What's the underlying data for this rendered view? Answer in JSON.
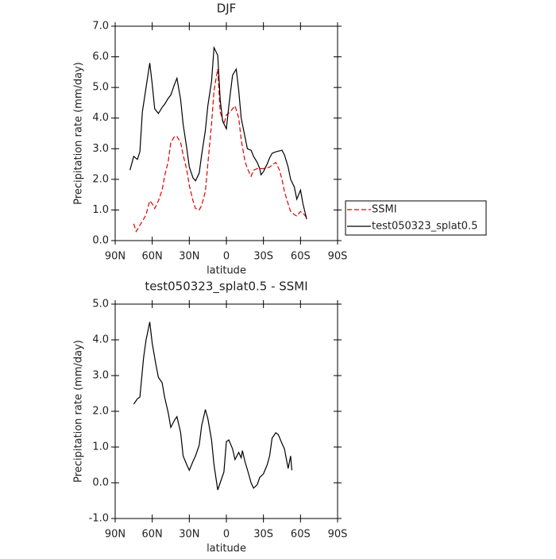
{
  "chart_data": [
    {
      "type": "line",
      "title": "DJF",
      "x_label": "latitude",
      "y_label": "Precipitation rate (mm/day)",
      "xlim": [
        90,
        -90
      ],
      "xticks": [
        {
          "value": 90,
          "label": "90N"
        },
        {
          "value": 60,
          "label": "60N"
        },
        {
          "value": 30,
          "label": "30N"
        },
        0,
        {
          "value": -30,
          "label": "30S"
        },
        {
          "value": -60,
          "label": "60S"
        },
        {
          "value": -90,
          "label": "90S"
        }
      ],
      "ylim": [
        0,
        7
      ],
      "yticks": [
        {
          "value": 0,
          "label": "0.0"
        },
        {
          "value": 1,
          "label": "1.0"
        },
        {
          "value": 2,
          "label": "2.0"
        },
        {
          "value": 3,
          "label": "3.0"
        },
        {
          "value": 4,
          "label": "4.0"
        },
        {
          "value": 5,
          "label": "5.0"
        },
        {
          "value": 6,
          "label": "6.0"
        },
        {
          "value": 7,
          "label": "7.0"
        }
      ],
      "legend": "right",
      "series": [
        {
          "name": "SSMI",
          "color": "#e00000",
          "dashed": true,
          "x": [
            75,
            73,
            70,
            67,
            65,
            62,
            60,
            58,
            55,
            52,
            50,
            47,
            45,
            42,
            40,
            37,
            35,
            32,
            30,
            27,
            25,
            22,
            20,
            17,
            15,
            12,
            10,
            7,
            5,
            2,
            0,
            -3,
            -5,
            -7,
            -10,
            -12,
            -15,
            -17,
            -20,
            -22,
            -25,
            -30,
            -35,
            -38,
            -40,
            -43,
            -45,
            -47,
            -50,
            -52,
            -55,
            -57,
            -60,
            -63,
            -65
          ],
          "values": [
            0.55,
            0.3,
            0.5,
            0.7,
            0.85,
            1.3,
            1.2,
            1.05,
            1.3,
            1.65,
            2.1,
            2.6,
            3.2,
            3.4,
            3.4,
            3.2,
            2.8,
            2.3,
            1.8,
            1.3,
            1.05,
            1.0,
            1.15,
            1.6,
            2.5,
            3.8,
            4.9,
            5.6,
            4.2,
            3.8,
            4.1,
            4.2,
            4.3,
            4.4,
            4.0,
            3.3,
            2.6,
            2.35,
            2.1,
            2.3,
            2.35,
            2.35,
            2.4,
            2.5,
            2.55,
            2.3,
            2.0,
            1.6,
            1.2,
            0.95,
            0.85,
            0.8,
            0.95,
            0.85,
            0.75
          ]
        },
        {
          "name": "test050323_splat0.5",
          "color": "#000000",
          "dashed": false,
          "x": [
            78,
            75,
            72,
            70,
            68,
            65,
            62,
            60,
            58,
            55,
            52,
            50,
            47,
            45,
            42,
            40,
            37,
            35,
            32,
            30,
            27,
            25,
            22,
            20,
            17,
            15,
            12,
            10,
            7,
            5,
            3,
            0,
            -2,
            -5,
            -8,
            -10,
            -12,
            -15,
            -17,
            -20,
            -22,
            -25,
            -27,
            -28,
            -30,
            -33,
            -35,
            -37,
            -40,
            -45,
            -47,
            -50,
            -52,
            -55,
            -57,
            -60,
            -62,
            -65
          ],
          "values": [
            2.3,
            2.75,
            2.65,
            2.9,
            4.2,
            5.0,
            5.8,
            5.1,
            4.3,
            4.15,
            4.35,
            4.45,
            4.65,
            4.75,
            5.1,
            5.3,
            4.6,
            3.8,
            3.0,
            2.4,
            2.05,
            1.95,
            2.2,
            2.8,
            3.6,
            4.4,
            5.2,
            6.3,
            6.05,
            4.6,
            3.9,
            3.65,
            4.4,
            5.4,
            5.6,
            4.9,
            4.0,
            3.4,
            3.0,
            2.95,
            2.75,
            2.55,
            2.35,
            2.15,
            2.25,
            2.5,
            2.7,
            2.85,
            2.9,
            2.95,
            2.8,
            2.4,
            2.0,
            1.75,
            1.35,
            1.65,
            1.2,
            0.7
          ]
        }
      ]
    },
    {
      "type": "line",
      "title": "test050323_splat0.5 - SSMI",
      "x_label": "latitude",
      "y_label": "Precipitation rate (mm/day)",
      "xlim": [
        90,
        -90
      ],
      "xticks": [
        {
          "value": 90,
          "label": "90N"
        },
        {
          "value": 60,
          "label": "60N"
        },
        {
          "value": 30,
          "label": "30N"
        },
        0,
        {
          "value": -30,
          "label": "30S"
        },
        {
          "value": -60,
          "label": "60S"
        },
        {
          "value": -90,
          "label": "90S"
        }
      ],
      "ylim": [
        -1,
        5
      ],
      "yticks": [
        {
          "value": -1,
          "label": "-1.0"
        },
        {
          "value": 0,
          "label": "0.0"
        },
        {
          "value": 1,
          "label": "1.0"
        },
        {
          "value": 2,
          "label": "2.0"
        },
        {
          "value": 3,
          "label": "3.0"
        },
        {
          "value": 4,
          "label": "4.0"
        },
        {
          "value": 5,
          "label": "5.0"
        }
      ],
      "series": [
        {
          "color": "#000000",
          "dashed": false,
          "x": [
            75,
            72,
            70,
            67,
            65,
            62,
            60,
            57,
            55,
            52,
            50,
            47,
            45,
            42,
            40,
            37,
            35,
            32,
            30,
            27,
            25,
            22,
            20,
            17,
            15,
            12,
            10,
            7,
            5,
            2,
            0,
            -2,
            -5,
            -7,
            -10,
            -12,
            -13,
            -15,
            -18,
            -20,
            -22,
            -25,
            -27,
            -30,
            -33,
            -35,
            -37,
            -40,
            -42,
            -45,
            -47,
            -50,
            -52,
            -53
          ],
          "values": [
            2.2,
            2.35,
            2.4,
            3.5,
            4.0,
            4.5,
            3.9,
            3.3,
            2.95,
            2.8,
            2.4,
            1.95,
            1.55,
            1.75,
            1.85,
            1.4,
            0.75,
            0.5,
            0.35,
            0.6,
            0.75,
            1.05,
            1.6,
            2.05,
            1.8,
            1.2,
            0.5,
            -0.2,
            0.0,
            0.3,
            1.15,
            1.2,
            0.95,
            0.65,
            0.85,
            0.7,
            0.9,
            0.6,
            0.25,
            0.0,
            -0.15,
            -0.05,
            0.15,
            0.25,
            0.5,
            0.75,
            1.25,
            1.4,
            1.35,
            1.1,
            0.95,
            0.4,
            0.75,
            0.35
          ]
        }
      ]
    }
  ]
}
